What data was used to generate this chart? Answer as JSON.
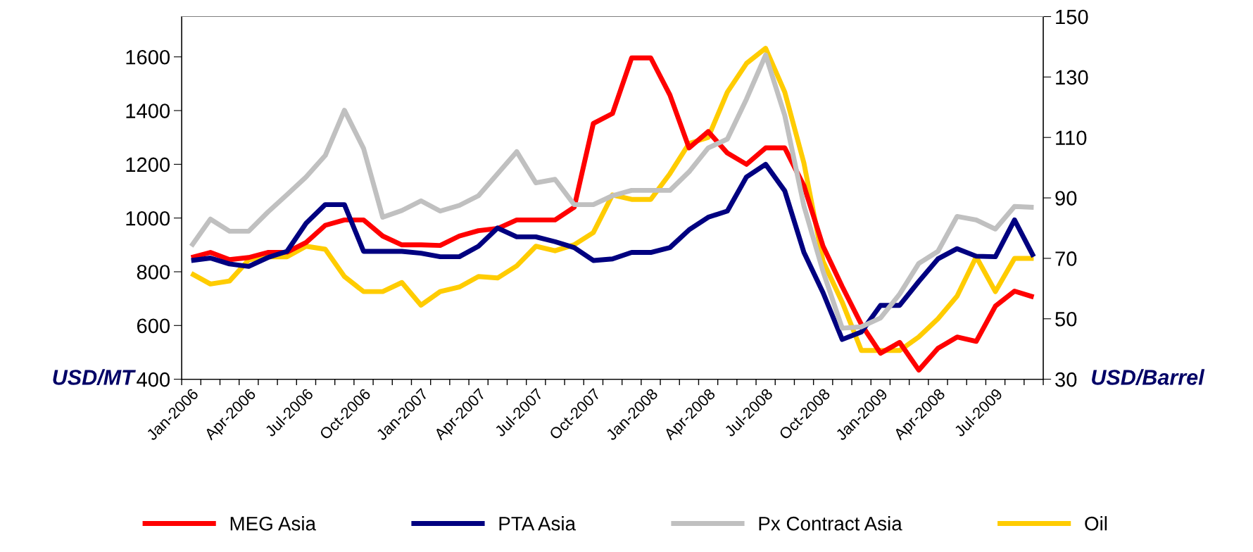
{
  "chart_data": {
    "type": "line",
    "categories": [
      "Jan-2006",
      null,
      null,
      "Apr-2006",
      null,
      null,
      "Jul-2006",
      null,
      null,
      "Oct-2006",
      null,
      null,
      "Jan-2007",
      null,
      null,
      "Apr-2007",
      null,
      null,
      "Jul-2007",
      null,
      null,
      "Oct-2007",
      null,
      null,
      "Jan-2008",
      null,
      null,
      "Apr-2008",
      null,
      null,
      "Jul-2008",
      null,
      null,
      "Oct-2008",
      null,
      null,
      "Jan-2009",
      null,
      null,
      "Apr-2008",
      null,
      null,
      "Jul-2009",
      null,
      null
    ],
    "series": [
      {
        "name": "MEG Asia",
        "color": "#ff0000",
        "values": [
          853,
          872,
          845,
          853,
          872,
          873,
          909,
          973,
          993,
          993,
          933,
          900,
          900,
          898,
          933,
          953,
          961,
          993,
          993,
          993,
          1040,
          1352,
          1389,
          1596,
          1596,
          1458,
          1261,
          1322,
          1242,
          1200,
          1261,
          1261,
          1120,
          895,
          745,
          604,
          497,
          537,
          434,
          515,
          557,
          541,
          672,
          728,
          706
        ]
      },
      {
        "name": "PTA Asia",
        "color": "#000080",
        "values": [
          842,
          851,
          829,
          820,
          853,
          876,
          981,
          1050,
          1050,
          876,
          876,
          876,
          869,
          856,
          856,
          895,
          963,
          930,
          930,
          912,
          890,
          842,
          848,
          872,
          872,
          890,
          956,
          1003,
          1026,
          1153,
          1200,
          1101,
          872,
          722,
          548,
          576,
          675,
          675,
          764,
          848,
          886,
          858,
          856,
          993,
          856
        ]
      },
      {
        "name": "Px Contract Asia",
        "color": "#c0c0c0",
        "values": [
          895,
          996,
          951,
          951,
          1022,
          1087,
          1153,
          1233,
          1401,
          1259,
          1003,
          1028,
          1064,
          1026,
          1047,
          1083,
          1165,
          1247,
          1131,
          1144,
          1050,
          1050,
          1083,
          1103,
          1103,
          1103,
          1172,
          1261,
          1294,
          1443,
          1607,
          1382,
          1045,
          801,
          590,
          595,
          628,
          717,
          831,
          876,
          1006,
          993,
          959,
          1043,
          1040
        ]
      },
      {
        "name": "Oil",
        "color": "#ffcc00",
        "axis": "y2",
        "values": [
          65,
          61.5,
          62.5,
          69.5,
          70.5,
          70.5,
          74,
          73,
          64,
          59,
          59,
          62,
          54.5,
          59,
          60.5,
          64,
          63.5,
          67.5,
          74,
          72.5,
          74.5,
          78.5,
          91,
          89.5,
          89.5,
          98,
          108,
          110,
          125,
          134.5,
          139.5,
          125,
          101.5,
          69,
          55.5,
          39.5,
          39.5,
          39.5,
          44,
          50,
          57.5,
          70.5,
          59,
          70,
          70
        ]
      }
    ],
    "ylabel": "USD/MT",
    "y2label": "USD/Barrel",
    "ylim": [
      400,
      1750
    ],
    "yticks": [
      400,
      600,
      800,
      1000,
      1200,
      1400,
      1600
    ],
    "y2lim": [
      30,
      150
    ],
    "y2ticks": [
      30,
      50,
      70,
      90,
      110,
      130,
      150
    ],
    "grid": false,
    "legend": "bottom",
    "marker": "none",
    "line_style": "solid"
  }
}
